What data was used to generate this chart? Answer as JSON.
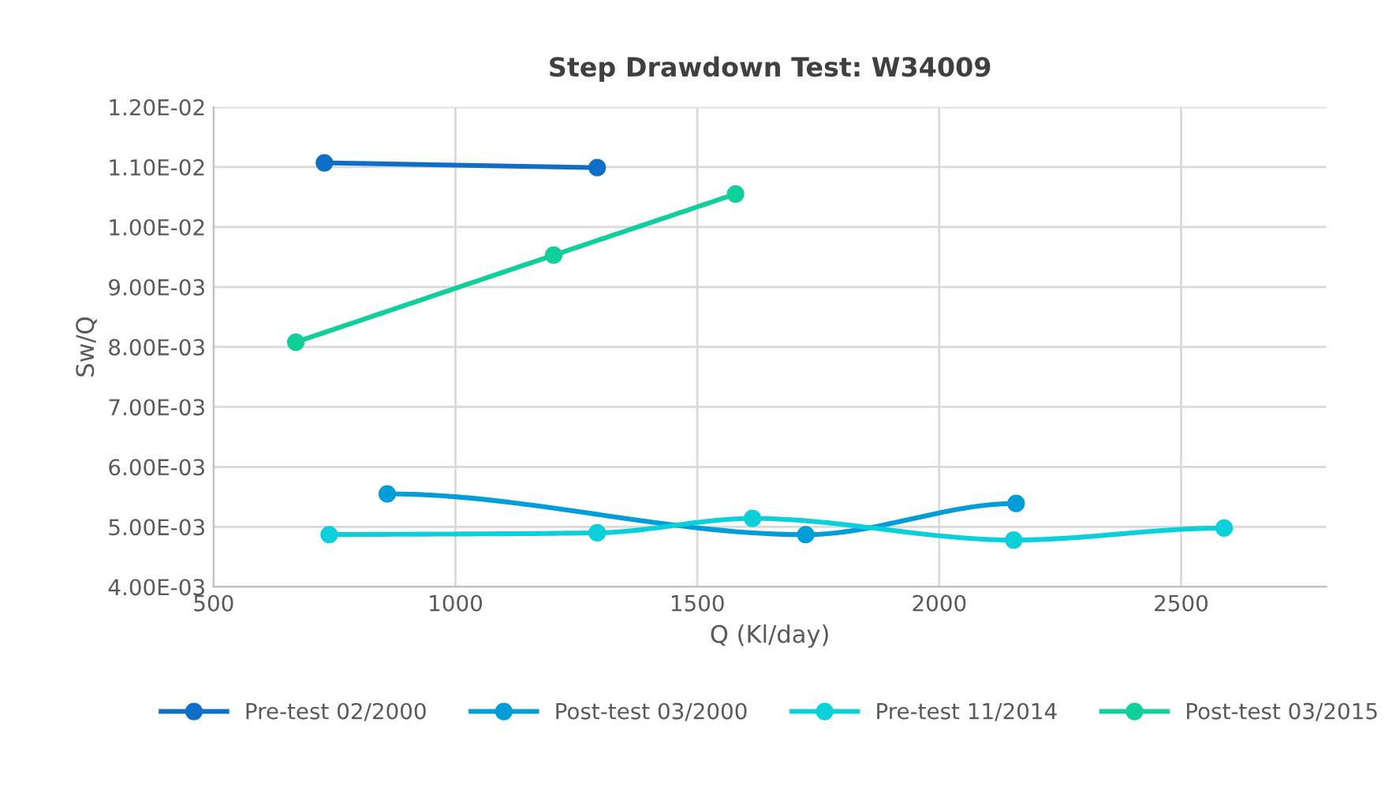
{
  "chart_data": {
    "type": "line",
    "title": "Step Drawdown Test: W34009",
    "xlabel": "Q (Kl/day)",
    "ylabel": "Sw/Q",
    "series": [
      {
        "name": "Pre-test 02/2000",
        "color": "#0f6fc6",
        "x": [
          729,
          1293
        ],
        "values": [
          0.01107,
          0.01099
        ]
      },
      {
        "name": "Post-test 03/2000",
        "color": "#009dd9",
        "x": [
          859,
          1724,
          2159
        ],
        "values": [
          0.00555,
          0.00487,
          0.00539
        ]
      },
      {
        "name": "Pre-test 11/2014",
        "color": "#0bd0d9",
        "x": [
          739,
          1293,
          1614,
          2154,
          2589
        ],
        "values": [
          0.00487,
          0.0049,
          0.00514,
          0.00478,
          0.00498
        ]
      },
      {
        "name": "Post-test 03/2015",
        "color": "#10cf9b",
        "x": [
          670,
          1203,
          1579
        ],
        "values": [
          0.00808,
          0.00953,
          0.01055
        ]
      }
    ],
    "xlim": [
      500,
      2800
    ],
    "xticks": [
      500,
      1000,
      1500,
      2000,
      2500
    ],
    "ylim": [
      0.004,
      0.012
    ],
    "yticks": [
      {
        "value": 0.004,
        "label": "4.00E-03"
      },
      {
        "value": 0.005,
        "label": "5.00E-03"
      },
      {
        "value": 0.006,
        "label": "6.00E-03"
      },
      {
        "value": 0.007,
        "label": "7.00E-03"
      },
      {
        "value": 0.008,
        "label": "8.00E-03"
      },
      {
        "value": 0.009,
        "label": "9.00E-03"
      },
      {
        "value": 0.01,
        "label": "1.00E-02"
      },
      {
        "value": 0.011,
        "label": "1.10E-02"
      },
      {
        "value": 0.012,
        "label": "1.20E-02"
      }
    ],
    "grid": true,
    "legend": "bottom",
    "marker": "circle",
    "line_style": "solid"
  }
}
